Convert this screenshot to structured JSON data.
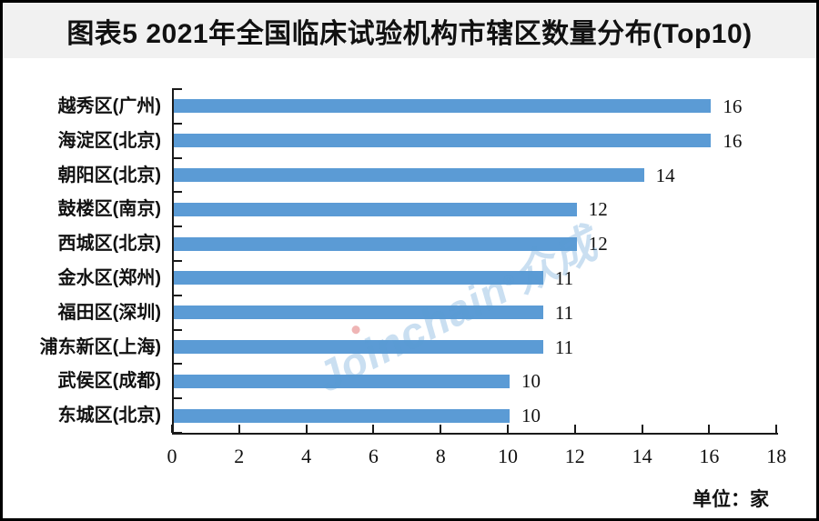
{
  "title": "图表5 2021年全国临床试验机构市辖区数量分布(Top10)",
  "unit_label": "单位：家",
  "watermark": {
    "brand": "Joinchain",
    "reg": "®",
    "cn": "众成"
  },
  "colors": {
    "bar": "#5B9BD5",
    "axis": "#1a1a1a",
    "title_band_bg": "#f1f1f1",
    "watermark_text": "rgba(91,155,213,0.32)",
    "watermark_dot": "rgba(226,120,120,0.55)"
  },
  "chart_data": {
    "type": "bar",
    "orientation": "horizontal",
    "title": "图表5 2021年全国临床试验机构市辖区数量分布(Top10)",
    "unit": "家",
    "categories": [
      "越秀区(广州)",
      "海淀区(北京)",
      "朝阳区(北京)",
      "鼓楼区(南京)",
      "西城区(北京)",
      "金水区(郑州)",
      "福田区(深圳)",
      "浦东新区(上海)",
      "武侯区(成都)",
      "东城区(北京)"
    ],
    "values": [
      16,
      16,
      14,
      12,
      12,
      11,
      11,
      11,
      10,
      10
    ],
    "x_ticks": [
      0,
      2,
      4,
      6,
      8,
      10,
      12,
      14,
      16,
      18
    ],
    "xlim": [
      0,
      18
    ],
    "value_labels_shown": true,
    "grid": false,
    "legend": false,
    "tick_style": "inside"
  }
}
